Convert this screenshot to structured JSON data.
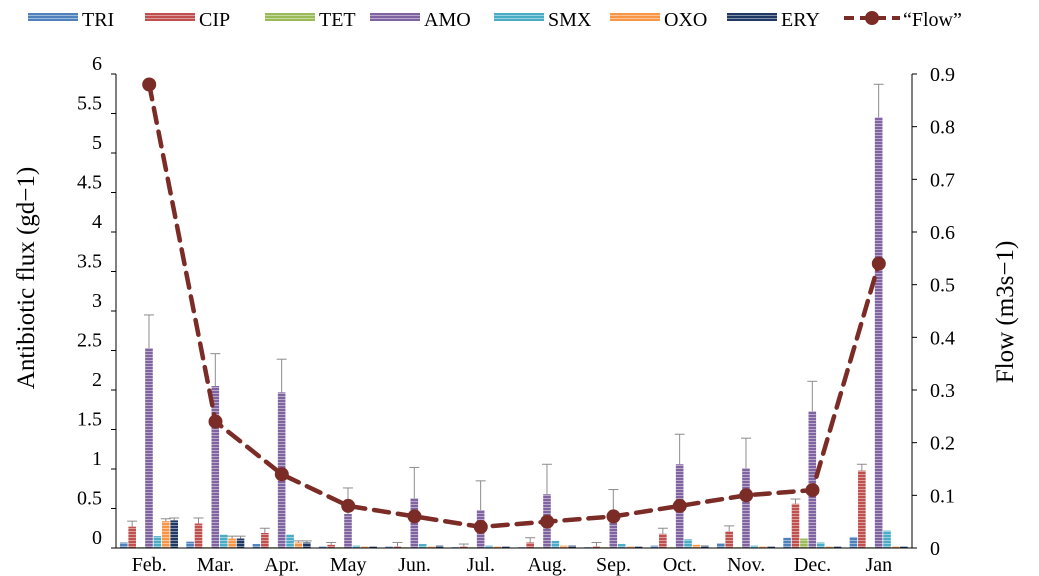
{
  "chart_data": {
    "type": "bar",
    "categories": [
      "Feb.",
      "Mar.",
      "Apr.",
      "May",
      "Jun.",
      "Jul.",
      "Aug.",
      "Sep.",
      "Oct.",
      "Nov.",
      "Dec.",
      "Jan"
    ],
    "series": [
      {
        "name": "TRI",
        "color": "#4f81bd",
        "values": [
          0.07,
          0.08,
          0.05,
          0.02,
          0.02,
          0.01,
          0.01,
          0.01,
          0.03,
          0.06,
          0.13,
          0.14
        ],
        "errors": [
          0,
          0,
          0,
          0,
          0,
          0,
          0,
          0,
          0,
          0,
          0,
          0
        ]
      },
      {
        "name": "CIP",
        "color": "#c0504d",
        "values": [
          0.27,
          0.31,
          0.19,
          0.04,
          0.02,
          0.02,
          0.07,
          0.02,
          0.18,
          0.21,
          0.56,
          0.98
        ],
        "errors": [
          0.07,
          0.07,
          0.06,
          0.03,
          0.05,
          0.03,
          0.06,
          0.05,
          0.07,
          0.07,
          0.06,
          0.08
        ]
      },
      {
        "name": "TET",
        "color": "#9bbb59",
        "values": [
          0.01,
          0.01,
          0.01,
          0.0,
          0.0,
          0.0,
          0.0,
          0.0,
          0.0,
          0.0,
          0.12,
          0.0
        ],
        "errors": [
          0,
          0,
          0,
          0,
          0,
          0,
          0,
          0,
          0,
          0,
          0,
          0
        ]
      },
      {
        "name": "AMO",
        "color": "#8064a2",
        "values": [
          2.53,
          2.05,
          1.97,
          0.43,
          0.63,
          0.48,
          0.68,
          0.38,
          1.06,
          1.01,
          1.73,
          5.45
        ],
        "errors": [
          0.42,
          0.41,
          0.42,
          0.33,
          0.39,
          0.37,
          0.38,
          0.36,
          0.38,
          0.38,
          0.38,
          0.42
        ]
      },
      {
        "name": "SMX",
        "color": "#4bacc6",
        "values": [
          0.15,
          0.17,
          0.17,
          0.03,
          0.05,
          0.03,
          0.09,
          0.05,
          0.11,
          0.03,
          0.07,
          0.22
        ],
        "errors": [
          0,
          0,
          0,
          0,
          0,
          0,
          0,
          0,
          0,
          0,
          0,
          0
        ]
      },
      {
        "name": "OXO",
        "color": "#f79646",
        "values": [
          0.34,
          0.12,
          0.07,
          0.02,
          0.02,
          0.02,
          0.03,
          0.02,
          0.04,
          0.02,
          0.02,
          0.02
        ],
        "errors": [
          0.03,
          0.03,
          0.02,
          0,
          0,
          0,
          0,
          0,
          0,
          0,
          0,
          0
        ]
      },
      {
        "name": "ERY",
        "color": "#1f3864",
        "values": [
          0.35,
          0.12,
          0.07,
          0.02,
          0.03,
          0.02,
          0.03,
          0.02,
          0.03,
          0.02,
          0.02,
          0.02
        ],
        "errors": [
          0.03,
          0.03,
          0.02,
          0,
          0,
          0,
          0,
          0,
          0,
          0,
          0,
          0
        ]
      }
    ],
    "line_series": {
      "name": "“Flow”",
      "color": "#7b2c26",
      "axis": "right",
      "values": [
        0.88,
        0.24,
        0.14,
        0.08,
        0.06,
        0.04,
        0.05,
        0.06,
        0.08,
        0.1,
        0.11,
        0.54
      ]
    },
    "ylabel": "Antibiotic flux (gd−1)",
    "y2label": "Flow (m3s−1)",
    "ylim": [
      0,
      6
    ],
    "y2lim": [
      0,
      0.9
    ],
    "yticks": [
      "0",
      "0.5",
      "1",
      "1.5",
      "2",
      "2.5",
      "3",
      "3.5",
      "4",
      "4.5",
      "5",
      "5.5",
      "6"
    ],
    "y2ticks": [
      "0",
      "0.1",
      "0.2",
      "0.3",
      "0.4",
      "0.5",
      "0.6",
      "0.7",
      "0.8",
      "0.9"
    ],
    "legend_position": "top",
    "grid": false
  }
}
